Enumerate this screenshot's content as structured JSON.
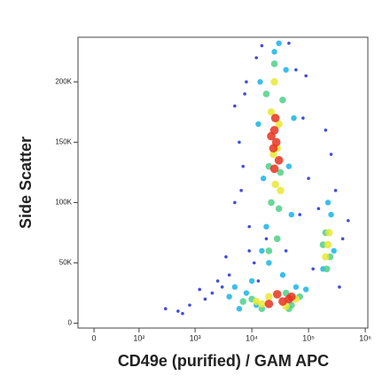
{
  "chart_data": {
    "type": "scatter",
    "xlabel": "CD49e (purified) / GAM APC",
    "ylabel": "Side Scatter",
    "xscale": "biexponential",
    "xlim": [
      -23,
      1110000
    ],
    "ylim": [
      -4000,
      237000
    ],
    "xticks": [
      0,
      {
        "value": 100,
        "label": "10²"
      },
      {
        "value": 1000,
        "label": "10³"
      },
      {
        "value": 10000,
        "label": "10⁴"
      },
      {
        "value": 100000,
        "label": "10⁵"
      },
      {
        "value": 1000000,
        "label": "10⁶"
      }
    ],
    "yticks": [
      0,
      {
        "value": 50000,
        "label": "50K"
      },
      {
        "value": 100000,
        "label": "100K"
      },
      {
        "value": 150000,
        "label": "150K"
      },
      {
        "value": 200000,
        "label": "200K"
      }
    ],
    "series": [
      {
        "color": "#1f2fd6",
        "x": [
          8000,
          12000,
          6000,
          5000,
          9000,
          15000,
          60000,
          80000,
          100000,
          70000,
          4000,
          3000,
          2000,
          1500,
          800,
          500,
          300,
          5000,
          7000,
          150000,
          300000,
          400000,
          250000,
          120000,
          9000,
          11000,
          6500,
          45000,
          90000,
          200000,
          3500,
          2500,
          1200,
          600,
          18000,
          40000,
          350000,
          500000,
          7500,
          13000
        ],
        "values": [
          200000,
          220000,
          150000,
          100000,
          60000,
          230000,
          210000,
          170000,
          120000,
          90000,
          40000,
          30000,
          25000,
          20000,
          15000,
          10000,
          12000,
          180000,
          130000,
          95000,
          110000,
          70000,
          140000,
          45000,
          80000,
          50000,
          110000,
          232000,
          205000,
          160000,
          55000,
          35000,
          28000,
          8000,
          70000,
          60000,
          30000,
          85000,
          190000,
          35000
        ]
      },
      {
        "color": "#18b4e8",
        "x": [
          14000,
          40000,
          16000,
          45000,
          18000,
          50000,
          20000,
          35000,
          13000,
          55000,
          8000,
          60000,
          90000,
          4000,
          6000,
          250000,
          180000,
          280000,
          220000,
          5000,
          12000,
          25000,
          30000,
          15000,
          10000
        ],
        "values": [
          200000,
          210000,
          120000,
          130000,
          80000,
          90000,
          50000,
          40000,
          165000,
          170000,
          25000,
          30000,
          28000,
          22000,
          12000,
          90000,
          45000,
          60000,
          100000,
          30000,
          15000,
          225000,
          232000,
          60000,
          35000
        ]
      },
      {
        "color": "#4fd08a",
        "x": [
          18000,
          35000,
          20000,
          32000,
          22000,
          30000,
          200000,
          240000,
          210000,
          10000,
          15000,
          50000,
          70000,
          7000,
          40000,
          25000,
          28000,
          20000,
          180000,
          45000
        ],
        "values": [
          190000,
          185000,
          130000,
          125000,
          100000,
          95000,
          75000,
          55000,
          45000,
          20000,
          12000,
          15000,
          22000,
          18000,
          25000,
          215000,
          70000,
          60000,
          65000,
          12000
        ]
      },
      {
        "color": "#e8e832",
        "x": [
          22000,
          30000,
          24000,
          28000,
          26000,
          220000,
          200000,
          15000,
          20000,
          40000,
          60000,
          25000,
          32000,
          230000,
          12000
        ],
        "values": [
          175000,
          165000,
          140000,
          145000,
          115000,
          65000,
          55000,
          16000,
          22000,
          14000,
          20000,
          200000,
          110000,
          75000,
          18000
        ]
      },
      {
        "color": "#e8321e",
        "x": [
          25000,
          27000,
          24000,
          26000,
          30000,
          22000,
          35000,
          45000,
          20000,
          50000,
          28000,
          25000
        ],
        "values": [
          160000,
          150000,
          145000,
          170000,
          135000,
          155000,
          18000,
          20000,
          16000,
          22000,
          24000,
          128000
        ]
      }
    ]
  }
}
